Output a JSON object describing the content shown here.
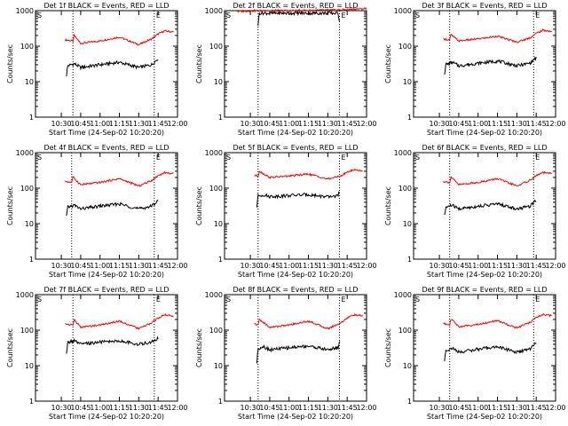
{
  "chart_data": [
    {
      "type": "line",
      "title": "Det 1f BLACK = Events, RED = LLD",
      "xlabel": "Start Time (24-Sep-02 10:20:20)",
      "ylabel": "Counts/sec",
      "ylog": true,
      "ylim": [
        1,
        1000
      ],
      "xlim_minutes": [
        10,
        120
      ],
      "x_ticks": [
        "10:30",
        "10:45",
        "11:00",
        "11:15",
        "11:30",
        "11:45",
        "12:00"
      ],
      "y_ticks": [
        "1",
        "10",
        "100",
        "1000"
      ],
      "markers": [
        "S",
        "E"
      ],
      "vlines": [
        "10:39",
        "11:42"
      ],
      "series": [
        {
          "color": "#ff0000",
          "x": [
            "10:33",
            "10:39",
            "10:40",
            "10:45",
            "11:00",
            "11:15",
            "11:30",
            "11:40",
            "11:45",
            "11:50",
            "11:57"
          ],
          "values": [
            150,
            140,
            200,
            120,
            140,
            180,
            110,
            160,
            220,
            270,
            250
          ]
        },
        {
          "color": "#000000",
          "x": [
            "10:34",
            "10:35",
            "10:40",
            "10:45",
            "11:00",
            "11:15",
            "11:30",
            "11:40",
            "11:45"
          ],
          "values": [
            15,
            28,
            32,
            25,
            30,
            35,
            25,
            30,
            45
          ]
        }
      ]
    },
    {
      "type": "line",
      "title": "Det 2f BLACK = Events, RED = LLD",
      "xlabel": "Start Time (24-Sep-02 10:20:20)",
      "ylabel": "Counts/sec",
      "ylog": true,
      "ylim": [
        1,
        1000
      ],
      "xlim_minutes": [
        10,
        120
      ],
      "x_ticks": [
        "10:30",
        "10:45",
        "11:00",
        "11:15",
        "11:30",
        "11:45",
        "12:00"
      ],
      "y_ticks": [
        "1",
        "10",
        "100",
        "1000"
      ],
      "markers": [
        "S",
        "E"
      ],
      "vlines": [
        "10:36",
        "11:39"
      ],
      "series": [
        {
          "color": "#ff0000",
          "x": [
            "10:20",
            "10:36",
            "11:00",
            "11:39",
            "12:00"
          ],
          "values": [
            950,
            1000,
            1000,
            1050,
            1150
          ]
        },
        {
          "color": "#000000",
          "x": [
            "10:36",
            "10:37",
            "11:00",
            "11:38",
            "11:39"
          ],
          "values": [
            400,
            850,
            850,
            850,
            500
          ]
        }
      ]
    },
    {
      "type": "line",
      "title": "Det 3f BLACK = Events, RED = LLD",
      "xlabel": "Start Time (24-Sep-02 10:20:20)",
      "ylabel": "Counts/sec",
      "ylog": true,
      "ylim": [
        1,
        1000
      ],
      "xlim_minutes": [
        10,
        120
      ],
      "x_ticks": [
        "10:30",
        "10:45",
        "11:00",
        "11:15",
        "11:30",
        "11:45",
        "12:00"
      ],
      "y_ticks": [
        "1",
        "10",
        "100",
        "1000"
      ],
      "markers": [
        "S",
        "E"
      ],
      "vlines": [
        "10:38",
        "11:43"
      ],
      "series": [
        {
          "color": "#ff0000",
          "x": [
            "10:33",
            "10:38",
            "10:39",
            "10:45",
            "11:00",
            "11:15",
            "11:30",
            "11:40",
            "11:45",
            "11:50",
            "11:57"
          ],
          "values": [
            160,
            150,
            210,
            140,
            160,
            190,
            130,
            170,
            230,
            280,
            260
          ]
        },
        {
          "color": "#000000",
          "x": [
            "10:34",
            "10:35",
            "10:40",
            "10:45",
            "11:00",
            "11:15",
            "11:30",
            "11:40",
            "11:45"
          ],
          "values": [
            17,
            30,
            35,
            28,
            33,
            38,
            28,
            33,
            47
          ]
        }
      ]
    },
    {
      "type": "line",
      "title": "Det 4f BLACK = Events, RED = LLD",
      "xlabel": "Start Time (24-Sep-02 10:20:20)",
      "ylabel": "Counts/sec",
      "ylog": true,
      "ylim": [
        1,
        1000
      ],
      "xlim_minutes": [
        10,
        120
      ],
      "x_ticks": [
        "10:30",
        "10:45",
        "11:00",
        "11:15",
        "11:30",
        "11:45",
        "12:00"
      ],
      "y_ticks": [
        "1",
        "10",
        "100",
        "1000"
      ],
      "markers": [
        "S",
        "E"
      ],
      "vlines": [
        "10:38",
        "11:42"
      ],
      "series": [
        {
          "color": "#ff0000",
          "x": [
            "10:33",
            "10:38",
            "10:39",
            "10:45",
            "11:00",
            "11:15",
            "11:30",
            "11:40",
            "11:45",
            "11:50",
            "11:57"
          ],
          "values": [
            155,
            145,
            205,
            125,
            145,
            185,
            115,
            165,
            225,
            275,
            255
          ]
        },
        {
          "color": "#000000",
          "x": [
            "10:34",
            "10:35",
            "10:40",
            "10:45",
            "11:00",
            "11:15",
            "11:30",
            "11:40",
            "11:45"
          ],
          "values": [
            16,
            29,
            33,
            26,
            31,
            36,
            26,
            31,
            46
          ]
        }
      ]
    },
    {
      "type": "line",
      "title": "Det 5f BLACK = Events, RED = LLD",
      "xlabel": "Start Time (24-Sep-02 10:20:20)",
      "ylabel": "Counts/sec",
      "ylog": true,
      "ylim": [
        1,
        1000
      ],
      "xlim_minutes": [
        10,
        120
      ],
      "x_ticks": [
        "10:30",
        "10:45",
        "11:00",
        "11:15",
        "11:30",
        "11:45",
        "12:00"
      ],
      "y_ticks": [
        "1",
        "10",
        "100",
        "1000"
      ],
      "markers": [
        "S",
        "E"
      ],
      "vlines": [
        "10:36",
        "11:39"
      ],
      "series": [
        {
          "color": "#ff0000",
          "x": [
            "10:33",
            "10:36",
            "10:37",
            "10:45",
            "11:00",
            "11:15",
            "11:30",
            "11:40",
            "11:45",
            "11:50",
            "11:57"
          ],
          "values": [
            230,
            220,
            300,
            200,
            220,
            250,
            180,
            220,
            280,
            330,
            310
          ]
        },
        {
          "color": "#000000",
          "x": [
            "10:35",
            "10:36",
            "10:40",
            "10:45",
            "11:00",
            "11:15",
            "11:30",
            "11:38",
            "11:39"
          ],
          "values": [
            30,
            60,
            65,
            58,
            62,
            66,
            56,
            62,
            80
          ]
        }
      ]
    },
    {
      "type": "line",
      "title": "Det 6f BLACK = Events, RED = LLD",
      "xlabel": "Start Time (24-Sep-02 10:20:20)",
      "ylabel": "Counts/sec",
      "ylog": true,
      "ylim": [
        1,
        1000
      ],
      "xlim_minutes": [
        10,
        120
      ],
      "x_ticks": [
        "10:30",
        "10:45",
        "11:00",
        "11:15",
        "11:30",
        "11:45",
        "12:00"
      ],
      "y_ticks": [
        "1",
        "10",
        "100",
        "1000"
      ],
      "markers": [
        "S",
        "E"
      ],
      "vlines": [
        "10:38",
        "11:43"
      ],
      "series": [
        {
          "color": "#ff0000",
          "x": [
            "10:33",
            "10:38",
            "10:39",
            "10:45",
            "11:00",
            "11:15",
            "11:30",
            "11:40",
            "11:45",
            "11:50",
            "11:57"
          ],
          "values": [
            155,
            145,
            205,
            125,
            145,
            185,
            115,
            165,
            225,
            275,
            255
          ]
        },
        {
          "color": "#000000",
          "x": [
            "10:34",
            "10:35",
            "10:40",
            "10:45",
            "11:00",
            "11:15",
            "11:30",
            "11:40",
            "11:45"
          ],
          "values": [
            16,
            29,
            33,
            26,
            31,
            36,
            26,
            31,
            46
          ]
        }
      ]
    },
    {
      "type": "line",
      "title": "Det 7f BLACK = Events, RED = LLD",
      "xlabel": "Start Time (24-Sep-02 10:20:20)",
      "ylabel": "Counts/sec",
      "ylog": true,
      "ylim": [
        1,
        1000
      ],
      "xlim_minutes": [
        10,
        120
      ],
      "x_ticks": [
        "10:30",
        "10:45",
        "11:00",
        "11:15",
        "11:30",
        "11:45",
        "12:00"
      ],
      "y_ticks": [
        "1",
        "10",
        "100",
        "1000"
      ],
      "markers": [
        "S",
        "E"
      ],
      "vlines": [
        "10:39",
        "11:42"
      ],
      "series": [
        {
          "color": "#ff0000",
          "x": [
            "10:33",
            "10:39",
            "10:40",
            "10:45",
            "11:00",
            "11:15",
            "11:30",
            "11:40",
            "11:45",
            "11:50",
            "11:57"
          ],
          "values": [
            150,
            140,
            200,
            120,
            140,
            180,
            110,
            160,
            220,
            270,
            250
          ]
        },
        {
          "color": "#000000",
          "x": [
            "10:34",
            "10:35",
            "10:40",
            "10:45",
            "11:00",
            "11:15",
            "11:30",
            "11:40",
            "11:45"
          ],
          "values": [
            20,
            45,
            50,
            40,
            46,
            50,
            40,
            46,
            60
          ]
        }
      ]
    },
    {
      "type": "line",
      "title": "Det 8f BLACK = Events, RED = LLD",
      "xlabel": "Start Time (24-Sep-02 10:20:20)",
      "ylabel": "Counts/sec",
      "ylog": true,
      "ylim": [
        1,
        1000
      ],
      "xlim_minutes": [
        10,
        120
      ],
      "x_ticks": [
        "10:30",
        "10:45",
        "11:00",
        "11:15",
        "11:30",
        "11:45",
        "12:00"
      ],
      "y_ticks": [
        "1",
        "10",
        "100",
        "1000"
      ],
      "markers": [
        "S",
        "E"
      ],
      "vlines": [
        "10:36",
        "11:39"
      ],
      "series": [
        {
          "color": "#ff0000",
          "x": [
            "10:33",
            "10:36",
            "10:37",
            "10:45",
            "11:00",
            "11:15",
            "11:30",
            "11:40",
            "11:45",
            "11:50",
            "11:57"
          ],
          "values": [
            150,
            140,
            200,
            120,
            140,
            180,
            110,
            160,
            220,
            270,
            250
          ]
        },
        {
          "color": "#000000",
          "x": [
            "10:35",
            "10:36",
            "10:40",
            "10:45",
            "11:00",
            "11:15",
            "11:30",
            "11:38",
            "11:39"
          ],
          "values": [
            12,
            30,
            35,
            28,
            32,
            36,
            28,
            33,
            45
          ]
        }
      ]
    },
    {
      "type": "line",
      "title": "Det 9f BLACK = Events, RED = LLD",
      "xlabel": "Start Time (24-Sep-02 10:20:20)",
      "ylabel": "Counts/sec",
      "ylog": true,
      "ylim": [
        1,
        1000
      ],
      "xlim_minutes": [
        10,
        120
      ],
      "x_ticks": [
        "10:30",
        "10:45",
        "11:00",
        "11:15",
        "11:30",
        "11:45",
        "12:00"
      ],
      "y_ticks": [
        "1",
        "10",
        "100",
        "1000"
      ],
      "markers": [
        "S",
        "E"
      ],
      "vlines": [
        "10:38",
        "11:43"
      ],
      "series": [
        {
          "color": "#ff0000",
          "x": [
            "10:33",
            "10:38",
            "10:39",
            "10:45",
            "11:00",
            "11:15",
            "11:30",
            "11:40",
            "11:45",
            "11:50",
            "11:57"
          ],
          "values": [
            155,
            145,
            205,
            125,
            145,
            185,
            115,
            165,
            225,
            275,
            255
          ]
        },
        {
          "color": "#000000",
          "x": [
            "10:34",
            "10:35",
            "10:40",
            "10:45",
            "11:00",
            "11:15",
            "11:30",
            "11:40",
            "11:45"
          ],
          "values": [
            14,
            27,
            31,
            24,
            29,
            34,
            24,
            29,
            44
          ]
        }
      ]
    }
  ]
}
